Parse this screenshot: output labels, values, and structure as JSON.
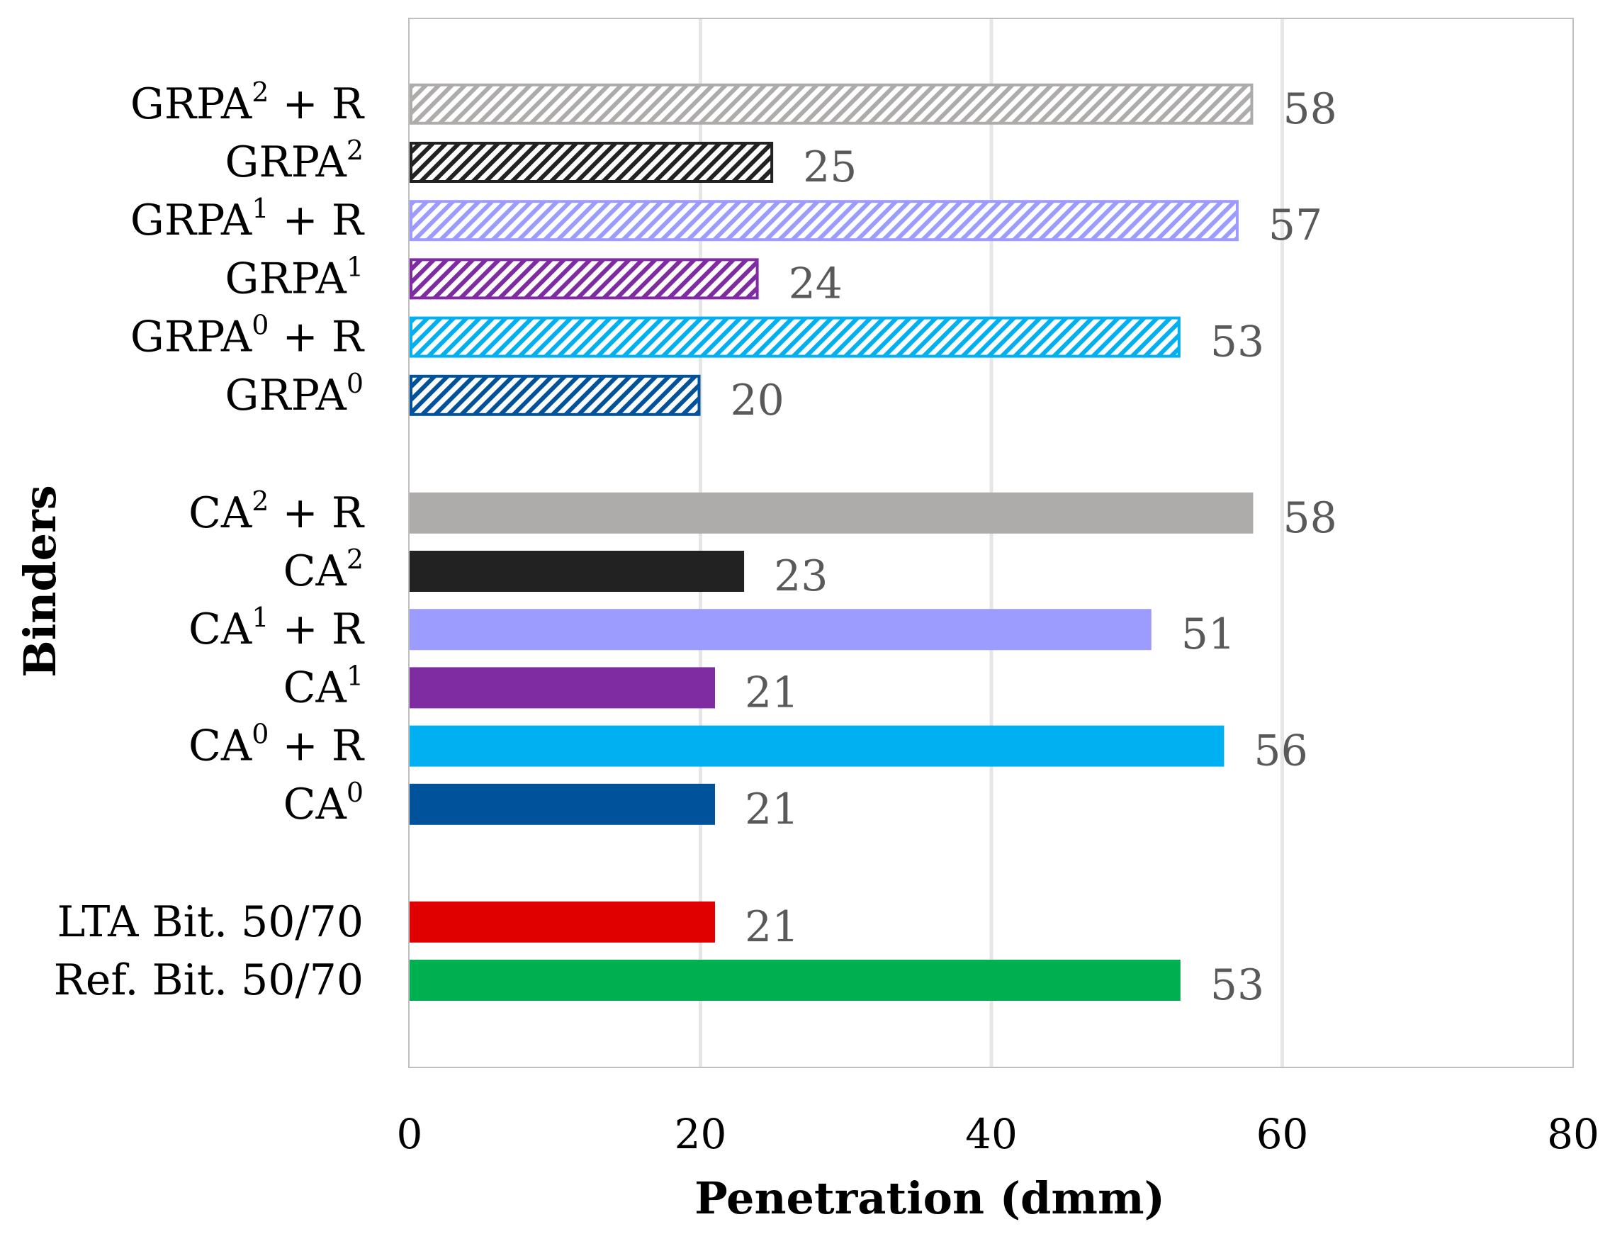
{
  "chart_data": {
    "type": "bar",
    "orientation": "horizontal",
    "xlabel": "Penetration (dmm)",
    "ylabel": "Binders",
    "xlim": [
      0,
      80
    ],
    "xticks": [
      0,
      20,
      40,
      60,
      80
    ],
    "grid": "vertical",
    "legend": "none",
    "bars": [
      {
        "group": 0,
        "category": "Ref. Bit. 50/70",
        "value": 53,
        "color": "#00B050",
        "hatched": false
      },
      {
        "group": 0,
        "category": "LTA Bit. 50/70",
        "value": 21,
        "color": "#E00000",
        "hatched": false
      },
      {
        "group": 1,
        "category": "CA⁰",
        "value": 21,
        "color": "#00539B",
        "hatched": false
      },
      {
        "group": 1,
        "category": "CA⁰ + R",
        "value": 56,
        "color": "#00B0F0",
        "hatched": false
      },
      {
        "group": 1,
        "category": "CA¹",
        "value": 21,
        "color": "#7F2CA3",
        "hatched": false
      },
      {
        "group": 1,
        "category": "CA¹ + R",
        "value": 51,
        "color": "#9C9CFF",
        "hatched": false
      },
      {
        "group": 1,
        "category": "CA²",
        "value": 23,
        "color": "#222222",
        "hatched": false
      },
      {
        "group": 1,
        "category": "CA² + R",
        "value": 58,
        "color": "#AEABAB",
        "hatched": false
      },
      {
        "group": 2,
        "category": "GRPA⁰",
        "value": 20,
        "color": "#00539B",
        "hatched": true
      },
      {
        "group": 2,
        "category": "GRPA⁰ + R",
        "value": 53,
        "color": "#00B0F0",
        "hatched": true
      },
      {
        "group": 2,
        "category": "GRPA¹",
        "value": 24,
        "color": "#7F2CA3",
        "hatched": true
      },
      {
        "group": 2,
        "category": "GRPA¹ + R",
        "value": 57,
        "color": "#9C9CFF",
        "hatched": true
      },
      {
        "group": 2,
        "category": "GRPA²",
        "value": 25,
        "color": "#222222",
        "hatched": true
      },
      {
        "group": 2,
        "category": "GRPA² + R",
        "value": 58,
        "color": "#AEABAB",
        "hatched": true
      }
    ]
  }
}
